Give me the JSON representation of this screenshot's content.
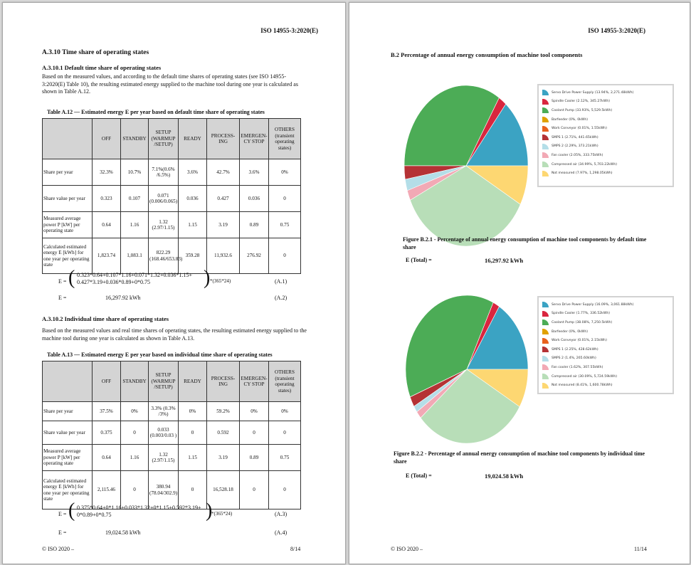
{
  "page1": {
    "header": "ISO 14955-3:2020(E)",
    "section_title": "A.3.10 Time share of operating states",
    "sub1": {
      "title": "A.3.10.1 Default time share of operating states",
      "paragraph": "Based on the measured values, and according to the default time shares of operating states (see ISO 14955-3:2020(E) Table 10), the resulting estimated energy supplied to the machine tool during one year is calculated as shown in Table A.12.",
      "table_caption": "Table A.12 — Estimated energy E per year based on default time share of operating states",
      "table": {
        "headers": [
          "",
          "OFF",
          "STANDBY",
          "SETUP (WARMUP /SETUP)",
          "READY",
          "PROCESS-ING",
          "EMERGEN-CY STOP",
          "OTHERS (transient operating states)"
        ],
        "rows": [
          [
            "Share per year",
            "32.3%",
            "10.7%",
            "7.1%(0.6% /6.5%)",
            "3.6%",
            "42.7%",
            "3.6%",
            "0%"
          ],
          [
            "Share value per year",
            "0.323",
            "0.107",
            "0.071 (0.006/0.065)",
            "0.036",
            "0.427",
            "0.036",
            "0"
          ],
          [
            "Measured average power P [kW] per operating state",
            "0.64",
            "1.16",
            "1.32 (2.97/1.15)",
            "1.15",
            "3.19",
            "0.89",
            "0.75"
          ],
          [
            "Calculated estimated energy E [kWh] for one year per operating state",
            "1,823.74",
            "1,083.1",
            "822.29 (168.46/653.83)",
            "359.28",
            "11,932.6",
            "276.92",
            "0"
          ]
        ]
      },
      "formula": {
        "lhs": "E =",
        "line1": "0.323*0.64+0.107*1.16+0.071*1.32+0.036*1.15+",
        "line2": "0.427*3.19+0.036*0.89+0*0.75",
        "tail": "*(365*24)",
        "ref": "(A.1)"
      },
      "result": {
        "lhs": "E =",
        "value": "16,297.92 kWh",
        "ref": "(A.2)"
      }
    },
    "sub2": {
      "title": "A.3.10.2 Individual time share of operating states",
      "paragraph": "Based on the measured values and real time shares of operating states, the resulting estimated energy supplied to the machine tool during one year is calculated as shown in Table A.13.",
      "table_caption": "Table A.13 — Estimated energy E per year based on individual time share of operating states",
      "table": {
        "headers": [
          "",
          "OFF",
          "STANDBY",
          "SETUP (WARMUP /SETUP)",
          "READY",
          "PROCESS-ING",
          "EMERGEN-CY STOP",
          "OTHERS (transient operating states)"
        ],
        "rows": [
          [
            "Share per year",
            "37.5%",
            "0%",
            "3.3% (0.3% /3%)",
            "0%",
            "59.2%",
            "0%",
            "0%"
          ],
          [
            "Share value per year",
            "0.375",
            "0",
            "0.033 (0.003/0.03 )",
            "0",
            "0.592",
            "0",
            "0"
          ],
          [
            "Measured average power P [kW] per operating state",
            "0.64",
            "1.16",
            "1.32 (2.97/1.15)",
            "1.15",
            "3.19",
            "0.89",
            "0.75"
          ],
          [
            "Calculated estimated energy E [kWh] for one year per operating state",
            "2,115.46",
            "0",
            "380.94 (78.04/302.9)",
            "0",
            "16,528.18",
            "0",
            "0"
          ]
        ]
      },
      "formula": {
        "lhs": "E =",
        "line1": "0.375*0.64+0*1.16+0.033*1.32+0*1.15+0.592*3.19+",
        "line2": "0*0.89+0*0.75",
        "tail": "*(365*24)",
        "ref": "(A.3)"
      },
      "result": {
        "lhs": "E =",
        "value": "19,024.58 kWh",
        "ref": "(A.4)"
      }
    },
    "footer_left": "© ISO 2020 –",
    "footer_right": "8/14"
  },
  "page2": {
    "header": "ISO 14955-3:2020(E)",
    "section_title": "B.2 Percentage of annual energy consumption of machine tool components",
    "fig1": {
      "caption": "Figure B.2.1 - Percentage of annual energy consumption of machine tool components by default time share",
      "total_label": "E (Total) =",
      "total_value": "16,297.92 kWh"
    },
    "fig2": {
      "caption": "Figure B.2.2 - Percentage of annual energy consumption of machine tool components by individual time share",
      "total_label": "E (Total) =",
      "total_value": "19,024.58 kWh"
    },
    "footer_left": "© ISO 2020 –",
    "footer_right": "11/14"
  },
  "chart_data": [
    {
      "type": "pie",
      "title": "Figure B.2.1",
      "legend_position": "right",
      "labels": [
        "Servo Drive Power Supply (13.94%, 2,271.48kWh)",
        "Spindle Cooler (2.12%, 345.27kWh)",
        "Coolant Pump (33.93%, 5,529.5kWh)",
        "Barfeeder (0%, 0kWh)",
        "Work Conveyor (0.01%, 1.55kWh)",
        "SMPS 1 (2.71%, 441.65kWh)",
        "SMPS 2 (2.29%, 373.21kWh)",
        "Fan cooler (2.05%, 333.75kWh)",
        "Compressed air (34.99%, 5,703.22kWh)",
        "Not measured (7.97%, 1,298.05kWh)"
      ],
      "values": [
        13.94,
        2.12,
        33.93,
        0,
        0.01,
        2.71,
        2.29,
        2.05,
        34.99,
        7.97
      ],
      "colors": [
        "#3ba3c3",
        "#d9263f",
        "#4cac56",
        "#e0a100",
        "#e8611e",
        "#b53235",
        "#b4dee8",
        "#f2a9b5",
        "#b8deb8",
        "#fdd772"
      ]
    },
    {
      "type": "pie",
      "title": "Figure B.2.2",
      "legend_position": "right",
      "labels": [
        "Servo Drive Power Supply (16.09%, 3,061.88kWh)",
        "Spindle Cooler (1.77%, 336.52kWh)",
        "Coolant Pump (38.08%, 7,250.5kWh)",
        "Barfeeder (0%, 0kWh)",
        "Work Conveyor (0.01%, 2.15kWh)",
        "SMPS 1 (2.25%, 428.62kWh)",
        "SMPS 2 (1.4%, 265.60kWh)",
        "Fan cooler (1.62%, 307.55kWh)",
        "Compressed air (30.09%, 5,724.59kWh)",
        "Not measured (8.41%, 1,600.78kWh)"
      ],
      "values": [
        16.09,
        1.77,
        38.08,
        0,
        0.01,
        2.25,
        1.4,
        1.62,
        30.09,
        8.41
      ],
      "colors": [
        "#3ba3c3",
        "#d9263f",
        "#4cac56",
        "#e0a100",
        "#e8611e",
        "#b53235",
        "#b4dee8",
        "#f2a9b5",
        "#b8deb8",
        "#fdd772"
      ]
    }
  ]
}
